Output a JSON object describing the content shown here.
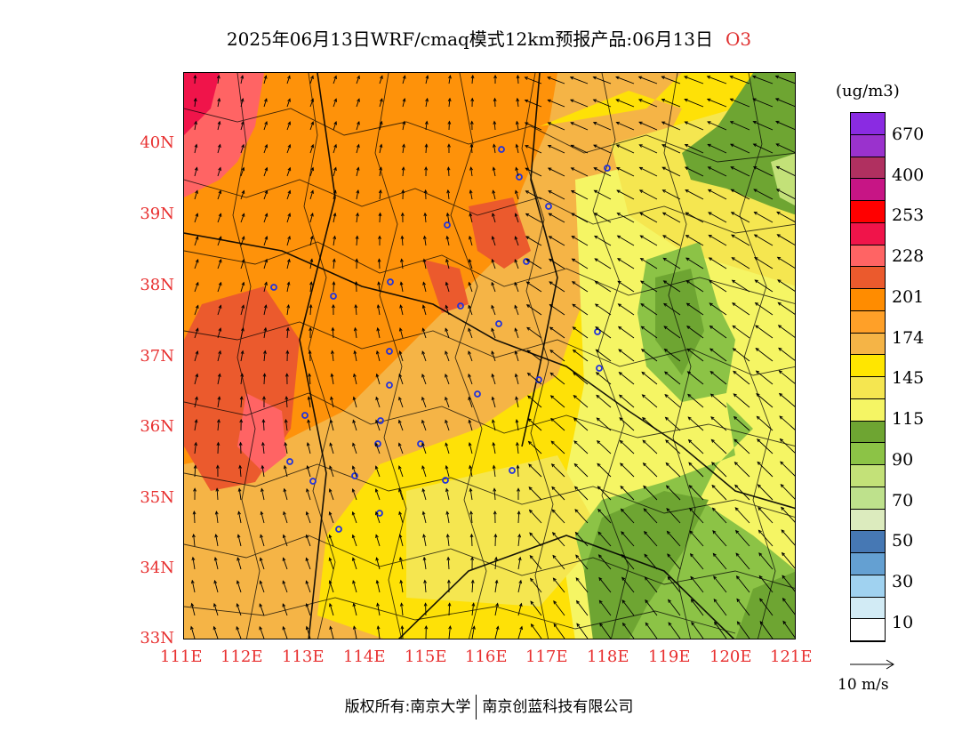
{
  "title": {
    "text": "2025年06月13日WRF/cmaq模式12km预报产品:06月13日",
    "species": "O3",
    "species_color": "#e03030"
  },
  "map": {
    "lon_labels": [
      "111E",
      "112E",
      "113E",
      "114E",
      "115E",
      "116E",
      "117E",
      "118E",
      "119E",
      "120E",
      "121E"
    ],
    "lat_labels": [
      "40N",
      "39N",
      "38N",
      "37N",
      "36N",
      "35N",
      "34N",
      "33N"
    ],
    "label_color": "#e83030"
  },
  "legend": {
    "unit": "(ug/m3)",
    "colors": [
      "#8a2be2",
      "#9a32cd",
      "#b03060",
      "#c71585",
      "#ff0000",
      "#f0144a",
      "#ff6464",
      "#eb5a2d",
      "#ff8c00",
      "#ffa028",
      "#f5b446",
      "#ffe600",
      "#f5e650",
      "#f5f564",
      "#6ea532",
      "#8cc346",
      "#c3e178",
      "#bee18c",
      "#dcebbe",
      "#4678b4",
      "#64a0d2",
      "#a0d2f0",
      "#d2ebf5",
      "#ffffff"
    ],
    "labels": [
      "670",
      "400",
      "253",
      "228",
      "201",
      "174",
      "145",
      "115",
      "90",
      "70",
      "50",
      "30",
      "10"
    ]
  },
  "wind_reference": {
    "label": "10 m/s"
  },
  "copyright": {
    "left": "版权所有:南京大学",
    "right": "南京创蓝科技有限公司"
  }
}
